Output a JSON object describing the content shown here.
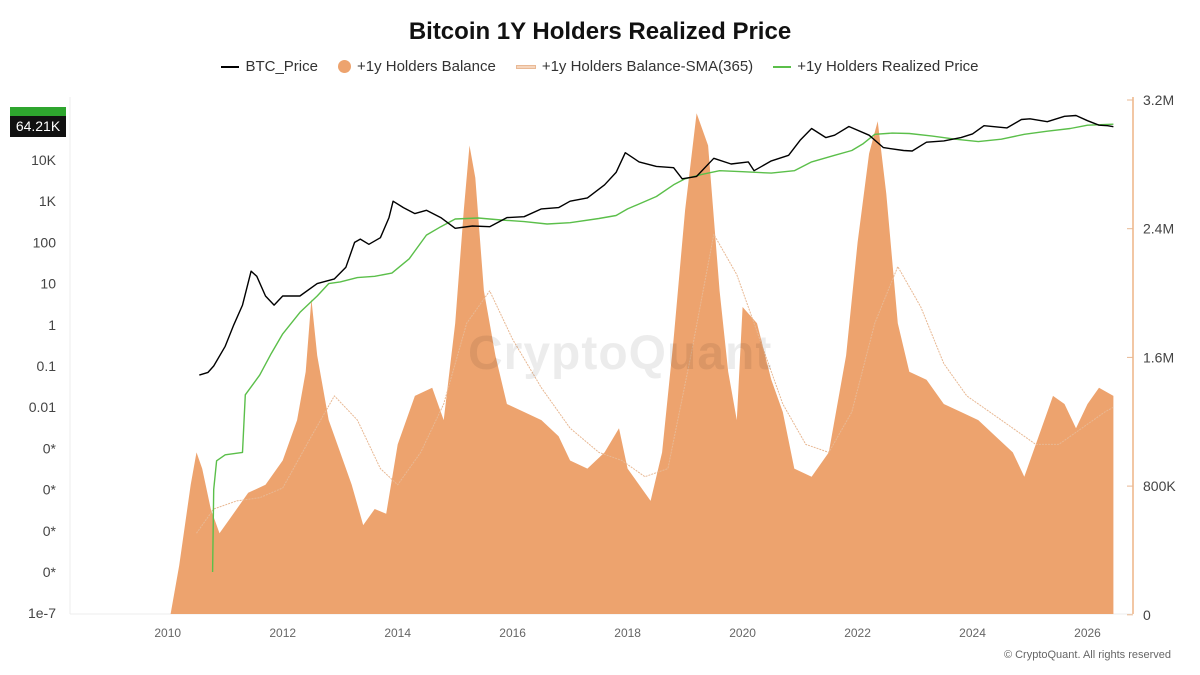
{
  "title": "Bitcoin 1Y Holders Realized Price",
  "legend": [
    {
      "label": "BTC_Price",
      "color": "#000000",
      "kind": "line"
    },
    {
      "label": "+1y Holders Balance",
      "color": "#eda36e",
      "kind": "dot"
    },
    {
      "label": "+1y Holders Balance-SMA(365)",
      "color": "#f5d5bd",
      "kind": "line"
    },
    {
      "label": "+1y Holders Realized Price",
      "color": "#5bbf4a",
      "kind": "line"
    }
  ],
  "current_value_badge": "64.21K",
  "watermark": "CryptoQuant",
  "copyright": "© CryptoQuant. All rights reserved",
  "chart_data": {
    "type": "area",
    "x_ticks": [
      "2010",
      "2012",
      "2014",
      "2016",
      "2018",
      "2020",
      "2022",
      "2024",
      "2026"
    ],
    "y_left": {
      "ticks": [
        "10K",
        "1K",
        "100",
        "10",
        "1",
        "0.1",
        "0.01",
        "0*",
        "0*",
        "0*",
        "0*",
        "1e-7"
      ],
      "scale": "log"
    },
    "y_right": {
      "ticks": [
        "3.2M",
        "2.4M",
        "1.6M",
        "800K",
        "0"
      ],
      "range": [
        0,
        3200000
      ]
    },
    "colors": {
      "price": "#000000",
      "balance": "#eda36e",
      "sma": "#f5d5bd",
      "realized": "#5bbf4a"
    },
    "series": [
      {
        "name": "BTC_Price",
        "axis": "left",
        "points": [
          [
            2010.55,
            0.06
          ],
          [
            2010.7,
            0.07
          ],
          [
            2010.8,
            0.1
          ],
          [
            2011.0,
            0.3
          ],
          [
            2011.15,
            1
          ],
          [
            2011.3,
            3
          ],
          [
            2011.45,
            20
          ],
          [
            2011.55,
            15
          ],
          [
            2011.7,
            5
          ],
          [
            2011.85,
            3
          ],
          [
            2012.0,
            5
          ],
          [
            2012.3,
            5
          ],
          [
            2012.6,
            10
          ],
          [
            2012.9,
            13
          ],
          [
            2013.1,
            25
          ],
          [
            2013.25,
            100
          ],
          [
            2013.35,
            120
          ],
          [
            2013.5,
            90
          ],
          [
            2013.7,
            130
          ],
          [
            2013.85,
            400
          ],
          [
            2013.92,
            1000
          ],
          [
            2014.1,
            700
          ],
          [
            2014.3,
            500
          ],
          [
            2014.5,
            600
          ],
          [
            2014.75,
            400
          ],
          [
            2015.0,
            220
          ],
          [
            2015.3,
            250
          ],
          [
            2015.6,
            240
          ],
          [
            2015.9,
            400
          ],
          [
            2016.2,
            420
          ],
          [
            2016.5,
            650
          ],
          [
            2016.8,
            700
          ],
          [
            2017.0,
            1000
          ],
          [
            2017.3,
            1200
          ],
          [
            2017.6,
            2500
          ],
          [
            2017.8,
            5000
          ],
          [
            2017.96,
            15000
          ],
          [
            2018.2,
            9000
          ],
          [
            2018.5,
            7000
          ],
          [
            2018.8,
            6500
          ],
          [
            2018.95,
            3500
          ],
          [
            2019.2,
            4000
          ],
          [
            2019.5,
            11000
          ],
          [
            2019.8,
            8000
          ],
          [
            2020.1,
            9000
          ],
          [
            2020.2,
            5500
          ],
          [
            2020.5,
            9500
          ],
          [
            2020.8,
            13000
          ],
          [
            2021.0,
            30000
          ],
          [
            2021.2,
            58000
          ],
          [
            2021.45,
            35000
          ],
          [
            2021.6,
            40000
          ],
          [
            2021.85,
            65000
          ],
          [
            2022.2,
            40000
          ],
          [
            2022.45,
            20000
          ],
          [
            2022.8,
            17000
          ],
          [
            2022.95,
            16500
          ],
          [
            2023.2,
            27000
          ],
          [
            2023.5,
            29000
          ],
          [
            2023.8,
            35000
          ],
          [
            2024.0,
            43000
          ],
          [
            2024.2,
            68000
          ],
          [
            2024.6,
            60000
          ],
          [
            2024.85,
            96000
          ],
          [
            2025.0,
            100000
          ],
          [
            2025.3,
            85000
          ],
          [
            2025.6,
            115000
          ],
          [
            2025.8,
            120000
          ],
          [
            2026.0,
            90000
          ],
          [
            2026.2,
            70000
          ],
          [
            2026.35,
            68000
          ],
          [
            2026.45,
            64210
          ]
        ]
      },
      {
        "name": "+1y Holders Realized Price",
        "axis": "left",
        "points": [
          [
            2010.78,
            1e-06
          ],
          [
            2010.8,
            0.0001
          ],
          [
            2010.85,
            0.0005
          ],
          [
            2011.0,
            0.0007
          ],
          [
            2011.3,
            0.0008
          ],
          [
            2011.35,
            0.02
          ],
          [
            2011.6,
            0.06
          ],
          [
            2011.8,
            0.2
          ],
          [
            2012.0,
            0.6
          ],
          [
            2012.3,
            2
          ],
          [
            2012.6,
            5
          ],
          [
            2012.8,
            10
          ],
          [
            2013.0,
            11
          ],
          [
            2013.3,
            14
          ],
          [
            2013.6,
            15
          ],
          [
            2013.9,
            18
          ],
          [
            2014.2,
            40
          ],
          [
            2014.5,
            150
          ],
          [
            2014.75,
            240
          ],
          [
            2015.0,
            370
          ],
          [
            2015.4,
            390
          ],
          [
            2015.8,
            350
          ],
          [
            2016.2,
            320
          ],
          [
            2016.6,
            280
          ],
          [
            2017.0,
            300
          ],
          [
            2017.5,
            380
          ],
          [
            2017.8,
            450
          ],
          [
            2018.0,
            650
          ],
          [
            2018.5,
            1300
          ],
          [
            2018.8,
            2500
          ],
          [
            2019.0,
            3500
          ],
          [
            2019.3,
            4500
          ],
          [
            2019.6,
            5500
          ],
          [
            2020.0,
            5200
          ],
          [
            2020.5,
            4800
          ],
          [
            2020.9,
            5500
          ],
          [
            2021.2,
            9000
          ],
          [
            2021.6,
            13000
          ],
          [
            2021.9,
            17000
          ],
          [
            2022.1,
            25000
          ],
          [
            2022.3,
            42000
          ],
          [
            2022.6,
            45000
          ],
          [
            2022.9,
            44000
          ],
          [
            2023.3,
            38000
          ],
          [
            2023.7,
            32000
          ],
          [
            2024.1,
            28000
          ],
          [
            2024.5,
            32000
          ],
          [
            2024.9,
            42000
          ],
          [
            2025.3,
            50000
          ],
          [
            2025.7,
            58000
          ],
          [
            2026.0,
            70000
          ],
          [
            2026.45,
            74000
          ]
        ]
      },
      {
        "name": "+1y Holders Balance",
        "axis": "right",
        "points": [
          [
            2010.05,
            0
          ],
          [
            2010.2,
            300000
          ],
          [
            2010.4,
            800000
          ],
          [
            2010.5,
            1000000
          ],
          [
            2010.6,
            900000
          ],
          [
            2010.75,
            650000
          ],
          [
            2010.9,
            500000
          ],
          [
            2011.1,
            600000
          ],
          [
            2011.4,
            750000
          ],
          [
            2011.7,
            800000
          ],
          [
            2012.0,
            950000
          ],
          [
            2012.25,
            1200000
          ],
          [
            2012.4,
            1500000
          ],
          [
            2012.5,
            1950000
          ],
          [
            2012.6,
            1600000
          ],
          [
            2012.8,
            1200000
          ],
          [
            2013.0,
            1000000
          ],
          [
            2013.2,
            800000
          ],
          [
            2013.4,
            550000
          ],
          [
            2013.6,
            650000
          ],
          [
            2013.8,
            620000
          ],
          [
            2014.0,
            1050000
          ],
          [
            2014.3,
            1350000
          ],
          [
            2014.6,
            1400000
          ],
          [
            2014.8,
            1200000
          ],
          [
            2015.0,
            1800000
          ],
          [
            2015.15,
            2500000
          ],
          [
            2015.25,
            2900000
          ],
          [
            2015.35,
            2700000
          ],
          [
            2015.5,
            2000000
          ],
          [
            2015.7,
            1600000
          ],
          [
            2015.9,
            1300000
          ],
          [
            2016.2,
            1250000
          ],
          [
            2016.5,
            1200000
          ],
          [
            2016.8,
            1100000
          ],
          [
            2017.0,
            950000
          ],
          [
            2017.3,
            900000
          ],
          [
            2017.6,
            1000000
          ],
          [
            2017.85,
            1150000
          ],
          [
            2018.0,
            900000
          ],
          [
            2018.2,
            800000
          ],
          [
            2018.4,
            700000
          ],
          [
            2018.6,
            1000000
          ],
          [
            2018.8,
            1700000
          ],
          [
            2019.0,
            2500000
          ],
          [
            2019.2,
            3100000
          ],
          [
            2019.4,
            2900000
          ],
          [
            2019.6,
            2000000
          ],
          [
            2019.75,
            1500000
          ],
          [
            2019.9,
            1200000
          ],
          [
            2020.0,
            1900000
          ],
          [
            2020.25,
            1800000
          ],
          [
            2020.5,
            1450000
          ],
          [
            2020.7,
            1250000
          ],
          [
            2020.9,
            900000
          ],
          [
            2021.2,
            850000
          ],
          [
            2021.5,
            1000000
          ],
          [
            2021.8,
            1600000
          ],
          [
            2022.0,
            2300000
          ],
          [
            2022.2,
            2850000
          ],
          [
            2022.35,
            3050000
          ],
          [
            2022.5,
            2600000
          ],
          [
            2022.7,
            1800000
          ],
          [
            2022.9,
            1500000
          ],
          [
            2023.2,
            1450000
          ],
          [
            2023.5,
            1300000
          ],
          [
            2023.8,
            1250000
          ],
          [
            2024.1,
            1200000
          ],
          [
            2024.4,
            1100000
          ],
          [
            2024.7,
            1000000
          ],
          [
            2024.9,
            850000
          ],
          [
            2025.1,
            1050000
          ],
          [
            2025.4,
            1350000
          ],
          [
            2025.6,
            1300000
          ],
          [
            2025.8,
            1150000
          ],
          [
            2026.0,
            1300000
          ],
          [
            2026.2,
            1400000
          ],
          [
            2026.45,
            1350000
          ]
        ]
      },
      {
        "name": "+1y Holders Balance-SMA(365)",
        "axis": "right",
        "points": [
          [
            2010.5,
            500000
          ],
          [
            2010.8,
            650000
          ],
          [
            2011.2,
            700000
          ],
          [
            2011.6,
            720000
          ],
          [
            2012.0,
            780000
          ],
          [
            2012.5,
            1100000
          ],
          [
            2012.9,
            1350000
          ],
          [
            2013.3,
            1200000
          ],
          [
            2013.7,
            900000
          ],
          [
            2014.0,
            800000
          ],
          [
            2014.4,
            1000000
          ],
          [
            2014.8,
            1300000
          ],
          [
            2015.2,
            1800000
          ],
          [
            2015.6,
            2000000
          ],
          [
            2016.0,
            1700000
          ],
          [
            2016.5,
            1400000
          ],
          [
            2017.0,
            1150000
          ],
          [
            2017.5,
            1000000
          ],
          [
            2017.9,
            950000
          ],
          [
            2018.3,
            850000
          ],
          [
            2018.7,
            900000
          ],
          [
            2019.1,
            1600000
          ],
          [
            2019.5,
            2350000
          ],
          [
            2019.9,
            2100000
          ],
          [
            2020.3,
            1700000
          ],
          [
            2020.7,
            1300000
          ],
          [
            2021.1,
            1050000
          ],
          [
            2021.5,
            1000000
          ],
          [
            2021.9,
            1250000
          ],
          [
            2022.3,
            1800000
          ],
          [
            2022.7,
            2150000
          ],
          [
            2023.1,
            1900000
          ],
          [
            2023.5,
            1550000
          ],
          [
            2023.9,
            1350000
          ],
          [
            2024.3,
            1250000
          ],
          [
            2024.7,
            1150000
          ],
          [
            2025.1,
            1050000
          ],
          [
            2025.5,
            1050000
          ],
          [
            2025.9,
            1150000
          ],
          [
            2026.3,
            1250000
          ],
          [
            2026.45,
            1280000
          ]
        ]
      }
    ]
  }
}
